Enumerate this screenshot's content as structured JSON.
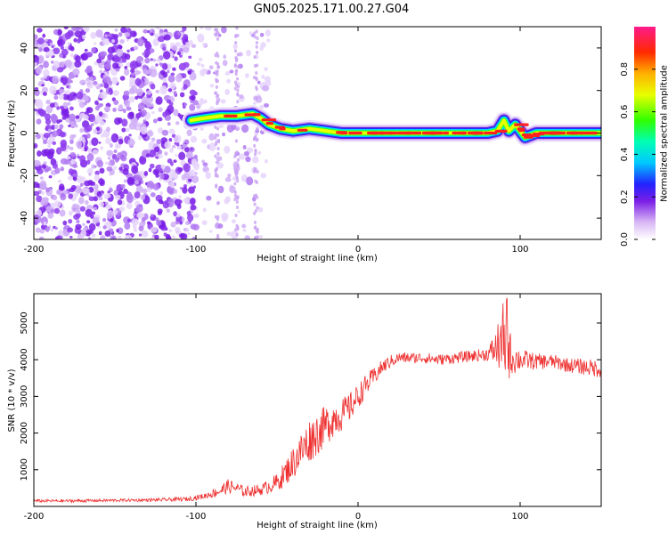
{
  "title": "GN05.2025.171.00.27.G04",
  "colors": {
    "snr_line": "#ee3030",
    "scatter_noise": "#7a1fe6",
    "axis": "#000000"
  },
  "chart_data": [
    {
      "type": "heatmap",
      "xlabel": "Height of straight line (km)",
      "ylabel": "Frequency (Hz)",
      "xlim": [
        -200,
        150
      ],
      "ylim": [
        -50,
        50
      ],
      "xticks": [
        "-200",
        "-100",
        "0",
        "100"
      ],
      "yticks": [
        "-40",
        "-20",
        "0",
        "20",
        "40"
      ],
      "colorbar": {
        "label": "Normalized spectral amplitude",
        "range": [
          0,
          1
        ],
        "ticks": [
          "0.0",
          "0.2",
          "0.4",
          "0.6",
          "0.8"
        ],
        "colormap": "rainbow (white-violet-blue-cyan-green-yellow-red-magenta)"
      },
      "noise_region_x": [
        -200,
        -60
      ],
      "ridge": [
        {
          "x": -103,
          "f": 6
        },
        {
          "x": -95,
          "f": 7
        },
        {
          "x": -85,
          "f": 8
        },
        {
          "x": -75,
          "f": 8
        },
        {
          "x": -65,
          "f": 9
        },
        {
          "x": -60,
          "f": 7
        },
        {
          "x": -55,
          "f": 4
        },
        {
          "x": -48,
          "f": 2
        },
        {
          "x": -40,
          "f": 1
        },
        {
          "x": -30,
          "f": 2
        },
        {
          "x": -20,
          "f": 1
        },
        {
          "x": -10,
          "f": 0
        },
        {
          "x": 0,
          "f": 0
        },
        {
          "x": 20,
          "f": 0
        },
        {
          "x": 40,
          "f": 0
        },
        {
          "x": 60,
          "f": 0
        },
        {
          "x": 80,
          "f": 0
        },
        {
          "x": 86,
          "f": 1
        },
        {
          "x": 90,
          "f": 6
        },
        {
          "x": 93,
          "f": 1
        },
        {
          "x": 97,
          "f": 4
        },
        {
          "x": 103,
          "f": -2
        },
        {
          "x": 110,
          "f": 0
        },
        {
          "x": 130,
          "f": 0
        },
        {
          "x": 150,
          "f": 0
        }
      ]
    },
    {
      "type": "line",
      "xlabel": "Height of straight line (km)",
      "ylabel": "SNR (10 * v/v)",
      "xlim": [
        -200,
        150
      ],
      "ylim": [
        0,
        5800
      ],
      "xticks": [
        "-200",
        "-100",
        "0",
        "100"
      ],
      "yticks": [
        "1000",
        "2000",
        "3000",
        "4000",
        "5000"
      ],
      "series": [
        {
          "x": [
            -200,
            -180,
            -160,
            -140,
            -120,
            -105,
            -95,
            -85,
            -80,
            -75,
            -70,
            -60,
            -50,
            -45,
            -40,
            -35,
            -30,
            -25,
            -20,
            -15,
            -10,
            -5,
            0,
            5,
            10,
            15,
            20,
            25,
            30,
            40,
            50,
            60,
            70,
            80,
            85,
            88,
            90,
            92,
            95,
            100,
            110,
            120,
            130,
            140,
            150
          ],
          "values": [
            150,
            150,
            160,
            170,
            180,
            200,
            280,
            420,
            550,
            500,
            400,
            450,
            650,
            900,
            1200,
            1500,
            1800,
            2000,
            2200,
            2400,
            2500,
            2700,
            3000,
            3300,
            3550,
            3800,
            3950,
            4050,
            4050,
            4050,
            4000,
            4050,
            4100,
            4150,
            4300,
            4500,
            4000,
            4300,
            4050,
            4000,
            3950,
            3950,
            3850,
            3800,
            3750
          ],
          "jitter": [
            40,
            40,
            40,
            40,
            50,
            60,
            80,
            150,
            200,
            150,
            150,
            150,
            250,
            350,
            450,
            550,
            600,
            600,
            550,
            500,
            450,
            400,
            350,
            300,
            250,
            200,
            180,
            150,
            150,
            150,
            150,
            150,
            160,
            180,
            500,
            900,
            1000,
            900,
            500,
            300,
            220,
            200,
            200,
            220,
            250
          ]
        }
      ]
    }
  ]
}
